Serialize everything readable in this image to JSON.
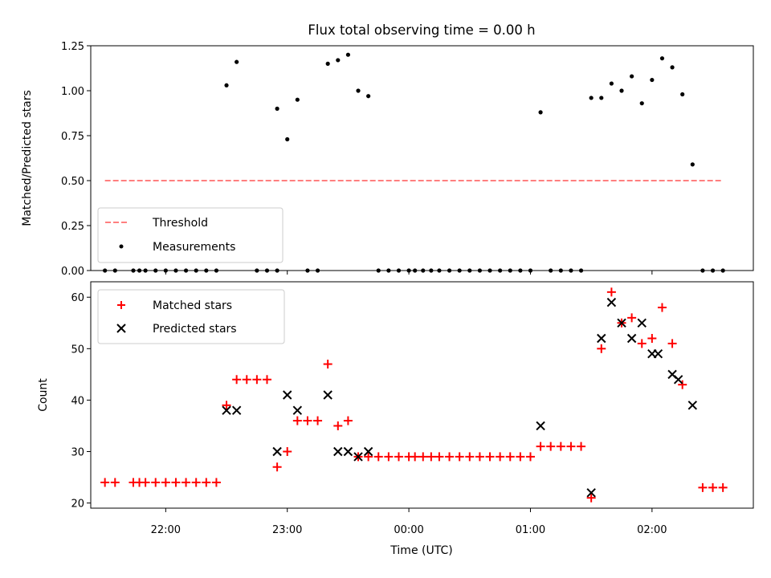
{
  "chart_data": [
    {
      "type": "scatter",
      "title": "Flux total observing time = 0.00 h",
      "xlabel": "",
      "ylabel": "Matched/Predicted stars",
      "xlim": [
        "21:23",
        "02:50"
      ],
      "ylim": [
        0,
        1.25
      ],
      "yticks": [
        "0.00",
        "0.25",
        "0.50",
        "0.75",
        "1.00",
        "1.25"
      ],
      "legend_position": "lower-left",
      "series": [
        {
          "name": "Threshold",
          "style": "dashed-line",
          "color": "#ff7f7f",
          "points": [
            [
              "21:30",
              0.5
            ],
            [
              "02:35",
              0.5
            ]
          ]
        },
        {
          "name": "Measurements",
          "style": "dot",
          "color": "#000000",
          "points": [
            [
              "21:30",
              0
            ],
            [
              "21:35",
              0
            ],
            [
              "21:44",
              0
            ],
            [
              "21:47",
              0
            ],
            [
              "21:50",
              0
            ],
            [
              "21:55",
              0
            ],
            [
              "22:00",
              0
            ],
            [
              "22:05",
              0
            ],
            [
              "22:10",
              0
            ],
            [
              "22:15",
              0
            ],
            [
              "22:20",
              0
            ],
            [
              "22:25",
              0
            ],
            [
              "22:30",
              1.03
            ],
            [
              "22:35",
              1.16
            ],
            [
              "22:45",
              0
            ],
            [
              "22:50",
              0
            ],
            [
              "22:55",
              0
            ],
            [
              "22:55",
              0.9
            ],
            [
              "23:00",
              0.73
            ],
            [
              "23:05",
              0.95
            ],
            [
              "23:10",
              0
            ],
            [
              "23:15",
              0
            ],
            [
              "23:20",
              1.15
            ],
            [
              "23:25",
              1.17
            ],
            [
              "23:30",
              1.2
            ],
            [
              "23:35",
              1.0
            ],
            [
              "23:40",
              0.97
            ],
            [
              "23:45",
              0
            ],
            [
              "23:50",
              0
            ],
            [
              "23:55",
              0
            ],
            [
              "00:00",
              0
            ],
            [
              "00:03",
              0
            ],
            [
              "00:07",
              0
            ],
            [
              "00:11",
              0
            ],
            [
              "00:15",
              0
            ],
            [
              "00:20",
              0
            ],
            [
              "00:25",
              0
            ],
            [
              "00:30",
              0
            ],
            [
              "00:35",
              0
            ],
            [
              "00:40",
              0
            ],
            [
              "00:45",
              0
            ],
            [
              "00:50",
              0
            ],
            [
              "00:55",
              0
            ],
            [
              "01:00",
              0
            ],
            [
              "01:05",
              0.88
            ],
            [
              "01:10",
              0
            ],
            [
              "01:15",
              0
            ],
            [
              "01:20",
              0
            ],
            [
              "01:25",
              0
            ],
            [
              "01:30",
              0.96
            ],
            [
              "01:35",
              0.96
            ],
            [
              "01:40",
              1.04
            ],
            [
              "01:45",
              1.0
            ],
            [
              "01:50",
              1.08
            ],
            [
              "01:55",
              0.93
            ],
            [
              "02:00",
              1.06
            ],
            [
              "02:05",
              1.18
            ],
            [
              "02:10",
              1.13
            ],
            [
              "02:15",
              0.98
            ],
            [
              "02:20",
              0.59
            ],
            [
              "02:25",
              0
            ],
            [
              "02:30",
              0
            ],
            [
              "02:35",
              0
            ]
          ]
        }
      ]
    },
    {
      "type": "scatter",
      "title": "",
      "xlabel": "Time (UTC)",
      "ylabel": "Count",
      "xlim": [
        "21:23",
        "02:50"
      ],
      "ylim": [
        19,
        63
      ],
      "yticks": [
        "20",
        "30",
        "40",
        "50",
        "60"
      ],
      "xticks": [
        "22:00",
        "23:00",
        "00:00",
        "01:00",
        "02:00"
      ],
      "legend_position": "upper-left",
      "series": [
        {
          "name": "Matched stars",
          "style": "plus",
          "color": "#ff0000",
          "points": [
            [
              "21:30",
              24
            ],
            [
              "21:35",
              24
            ],
            [
              "21:44",
              24
            ],
            [
              "21:47",
              24
            ],
            [
              "21:50",
              24
            ],
            [
              "21:55",
              24
            ],
            [
              "22:00",
              24
            ],
            [
              "22:05",
              24
            ],
            [
              "22:10",
              24
            ],
            [
              "22:15",
              24
            ],
            [
              "22:20",
              24
            ],
            [
              "22:25",
              24
            ],
            [
              "22:30",
              39
            ],
            [
              "22:35",
              44
            ],
            [
              "22:40",
              44
            ],
            [
              "22:45",
              44
            ],
            [
              "22:50",
              44
            ],
            [
              "22:55",
              27
            ],
            [
              "23:00",
              30
            ],
            [
              "23:05",
              36
            ],
            [
              "23:10",
              36
            ],
            [
              "23:15",
              36
            ],
            [
              "23:20",
              47
            ],
            [
              "23:25",
              35
            ],
            [
              "23:30",
              36
            ],
            [
              "23:35",
              29
            ],
            [
              "23:40",
              29
            ],
            [
              "23:45",
              29
            ],
            [
              "23:50",
              29
            ],
            [
              "23:55",
              29
            ],
            [
              "00:00",
              29
            ],
            [
              "00:03",
              29
            ],
            [
              "00:07",
              29
            ],
            [
              "00:11",
              29
            ],
            [
              "00:15",
              29
            ],
            [
              "00:20",
              29
            ],
            [
              "00:25",
              29
            ],
            [
              "00:30",
              29
            ],
            [
              "00:35",
              29
            ],
            [
              "00:40",
              29
            ],
            [
              "00:45",
              29
            ],
            [
              "00:50",
              29
            ],
            [
              "00:55",
              29
            ],
            [
              "01:00",
              29
            ],
            [
              "01:05",
              31
            ],
            [
              "01:10",
              31
            ],
            [
              "01:15",
              31
            ],
            [
              "01:20",
              31
            ],
            [
              "01:25",
              31
            ],
            [
              "01:30",
              21
            ],
            [
              "01:35",
              50
            ],
            [
              "01:40",
              61
            ],
            [
              "01:45",
              55
            ],
            [
              "01:50",
              56
            ],
            [
              "01:55",
              51
            ],
            [
              "02:00",
              52
            ],
            [
              "02:05",
              58
            ],
            [
              "02:10",
              51
            ],
            [
              "02:15",
              43
            ],
            [
              "02:25",
              23
            ],
            [
              "02:30",
              23
            ],
            [
              "02:35",
              23
            ]
          ]
        },
        {
          "name": "Predicted stars",
          "style": "x",
          "color": "#000000",
          "points": [
            [
              "22:30",
              38
            ],
            [
              "22:35",
              38
            ],
            [
              "22:55",
              30
            ],
            [
              "23:00",
              41
            ],
            [
              "23:05",
              38
            ],
            [
              "23:20",
              41
            ],
            [
              "23:25",
              30
            ],
            [
              "23:30",
              30
            ],
            [
              "23:35",
              29
            ],
            [
              "23:40",
              30
            ],
            [
              "01:05",
              35
            ],
            [
              "01:30",
              22
            ],
            [
              "01:35",
              52
            ],
            [
              "01:40",
              59
            ],
            [
              "01:45",
              55
            ],
            [
              "01:50",
              52
            ],
            [
              "01:55",
              55
            ],
            [
              "02:00",
              49
            ],
            [
              "02:03",
              49
            ],
            [
              "02:10",
              45
            ],
            [
              "02:13",
              44
            ],
            [
              "02:20",
              39
            ]
          ]
        }
      ]
    }
  ]
}
